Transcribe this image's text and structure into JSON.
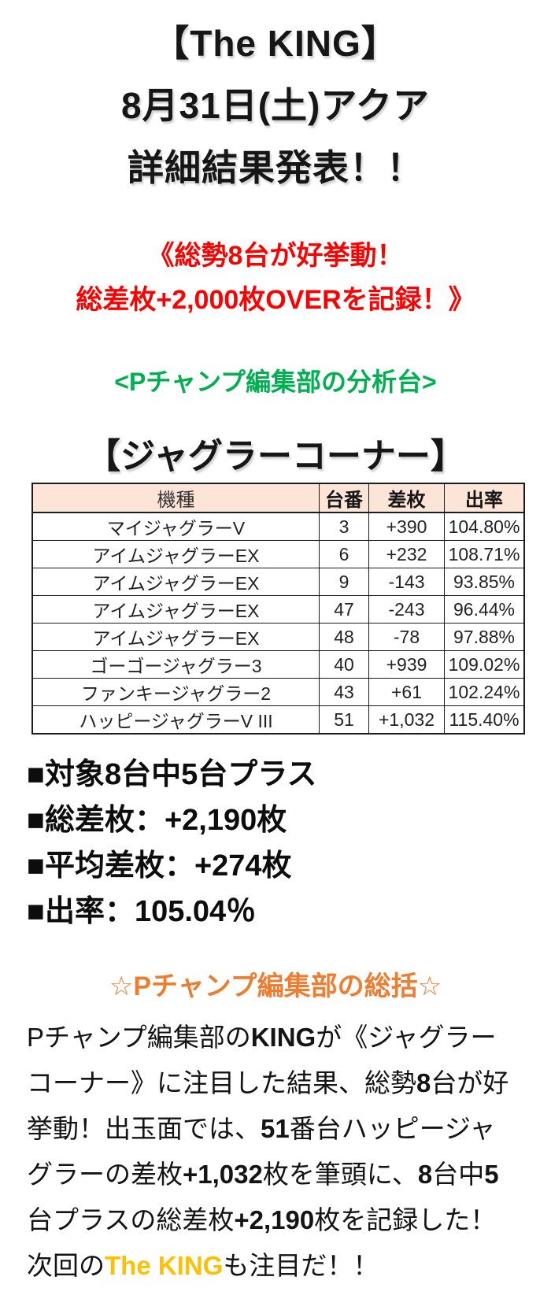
{
  "page": {
    "background": "#ffffff"
  },
  "title": {
    "line1": "【The KING】",
    "line2": "8月31日(土)アクア",
    "line3": "詳細結果発表！！"
  },
  "highlight": {
    "color": "#ff0000",
    "line1": "《総勢8台が好挙動！",
    "line2": "総差枚+2,000枚OVERを記録！》"
  },
  "analysis_note": {
    "color": "#00b050",
    "text": "<Pチャンプ編集部の分析台>"
  },
  "section_heading": {
    "text": "【ジャグラーコーナー】"
  },
  "results_table": {
    "header_bg": "#fce4d6",
    "columns": [
      "機種",
      "台番",
      "差枚",
      "出率"
    ],
    "rows": [
      [
        "マイジャグラーV",
        "3",
        "+390",
        "104.80%"
      ],
      [
        "アイムジャグラーEX",
        "6",
        "+232",
        "108.71%"
      ],
      [
        "アイムジャグラーEX",
        "9",
        "-143",
        "93.85%"
      ],
      [
        "アイムジャグラーEX",
        "47",
        "-243",
        "96.44%"
      ],
      [
        "アイムジャグラーEX",
        "48",
        "-78",
        "97.88%"
      ],
      [
        "ゴーゴージャグラー3",
        "40",
        "+939",
        "109.02%"
      ],
      [
        "ファンキージャグラー2",
        "43",
        "+61",
        "102.24%"
      ],
      [
        "ハッピージャグラーV III",
        "51",
        "+1,032",
        "115.40%"
      ]
    ]
  },
  "summary": {
    "items": [
      "■対象8台中5台プラス",
      "■総差枚：+2,190枚",
      "■平均差枚：+274枚",
      "■出率：105.04％"
    ]
  },
  "recap": {
    "heading": "☆Pチャンプ編集部の総括☆",
    "heading_color": "#ed7d31",
    "gold_color": "#ffc000",
    "lines": [
      [
        {
          "t": "Pチャンプ編集部の"
        },
        {
          "t": "KING",
          "s": "b"
        },
        {
          "t": "が《ジャグラー"
        }
      ],
      [
        {
          "t": "コーナー》に注目した結果、総勢"
        },
        {
          "t": "8",
          "s": "b"
        },
        {
          "t": "台が好"
        }
      ],
      [
        {
          "t": "挙動！出玉面では、"
        },
        {
          "t": "51",
          "s": "b"
        },
        {
          "t": "番台ハッピージャ"
        }
      ],
      [
        {
          "t": "グラーの差枚"
        },
        {
          "t": "+1,032",
          "s": "b"
        },
        {
          "t": "枚を筆頭に、"
        },
        {
          "t": "8",
          "s": "b"
        },
        {
          "t": "台中"
        },
        {
          "t": "5",
          "s": "b"
        }
      ],
      [
        {
          "t": "台プラスの総差枚"
        },
        {
          "t": "+2,190",
          "s": "b"
        },
        {
          "t": "枚を記録した！"
        }
      ],
      [
        {
          "t": "次回の"
        },
        {
          "t": "The KING",
          "s": "gold"
        },
        {
          "t": "も注目だ！！"
        }
      ]
    ]
  }
}
